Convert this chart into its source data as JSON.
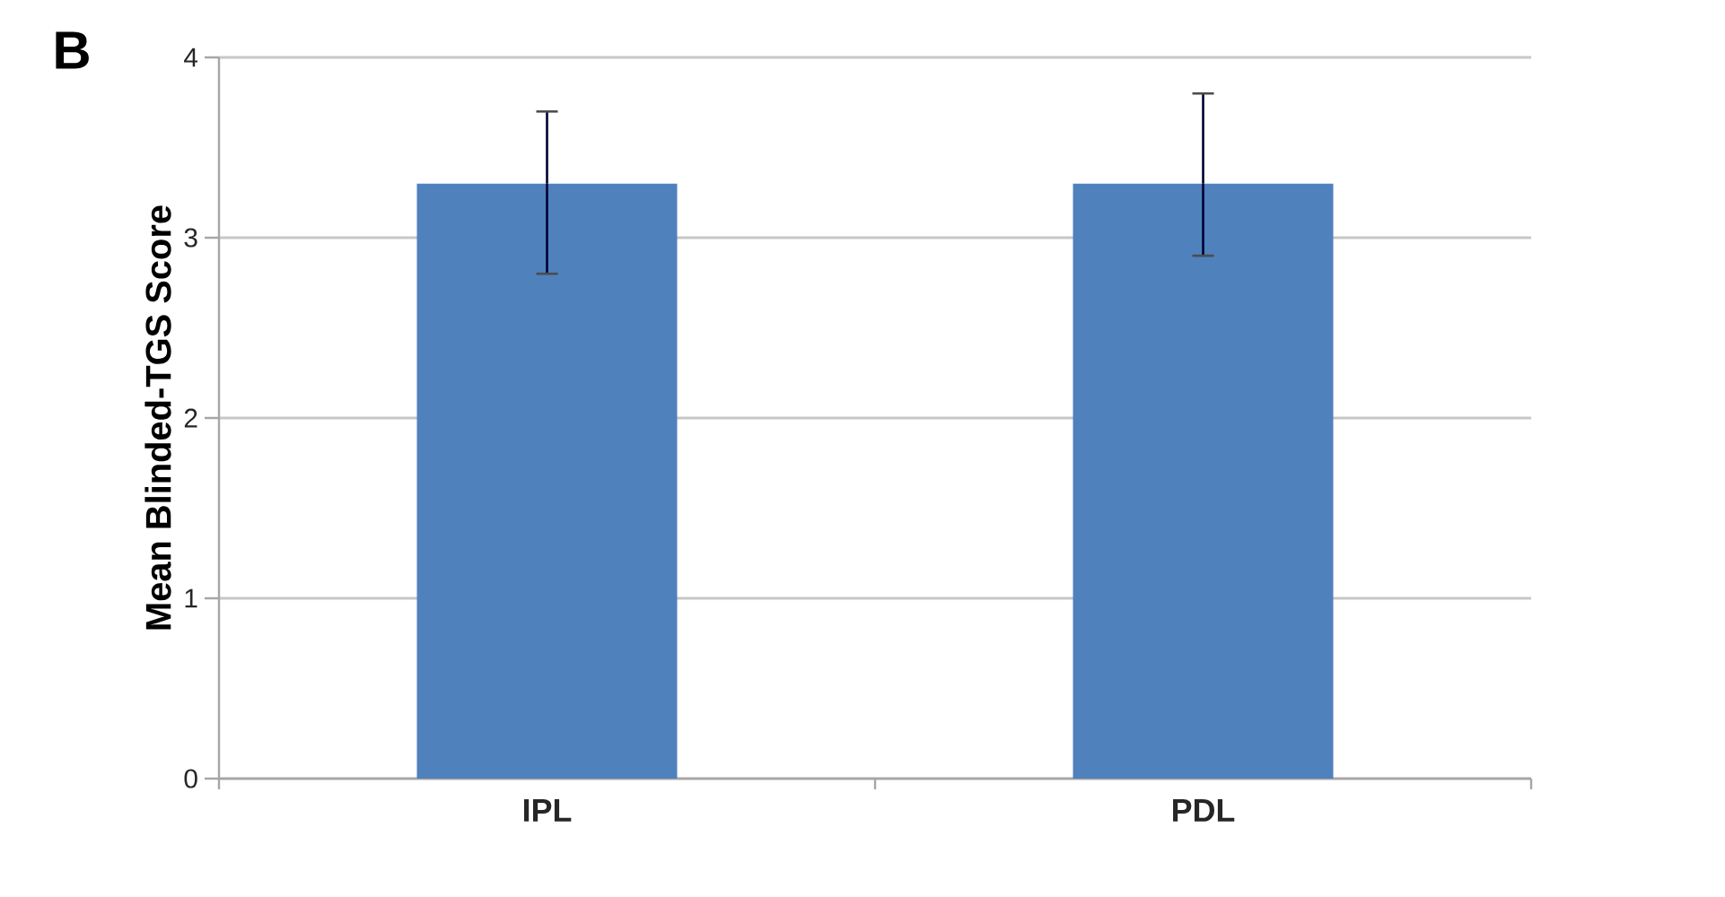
{
  "chart_data": {
    "type": "bar",
    "ylabel": "Mean Blinded-TGS Score",
    "categories": [
      "IPL",
      "PDL"
    ],
    "values": [
      3.3,
      3.3
    ],
    "errors": [
      [
        2.8,
        3.7
      ],
      [
        2.9,
        3.8
      ]
    ],
    "color": "#4f81bd",
    "ylim": [
      0,
      4
    ],
    "yticks": [
      0,
      1,
      2,
      3,
      4
    ],
    "grid": "y",
    "annotations": [
      "B"
    ]
  }
}
